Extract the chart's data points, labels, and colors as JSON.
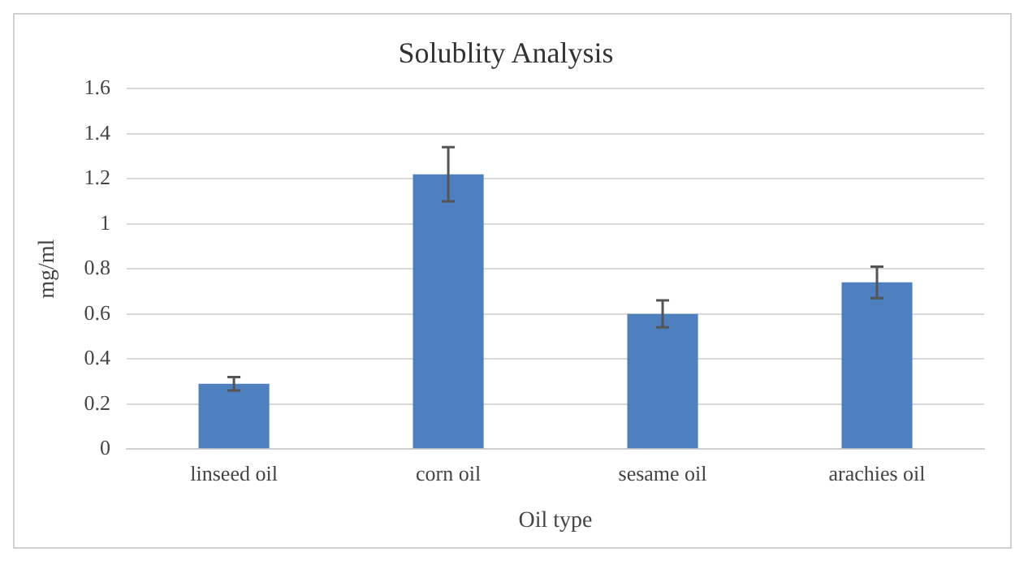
{
  "chart_data": {
    "type": "bar",
    "title": "Solublity Analysis",
    "xlabel": "Oil type",
    "ylabel": "mg/ml",
    "categories": [
      "linseed oil",
      "corn oil",
      "sesame oil",
      "arachies oil"
    ],
    "values": [
      0.29,
      1.22,
      0.6,
      0.74
    ],
    "errors": [
      0.03,
      0.12,
      0.06,
      0.07
    ],
    "color": "#4e7fbf",
    "ylim": [
      0,
      1.6
    ],
    "yticks": [
      0,
      0.2,
      0.4,
      0.6,
      0.8,
      1,
      1.2,
      1.4,
      1.6
    ],
    "grid": "y",
    "legend": false
  }
}
